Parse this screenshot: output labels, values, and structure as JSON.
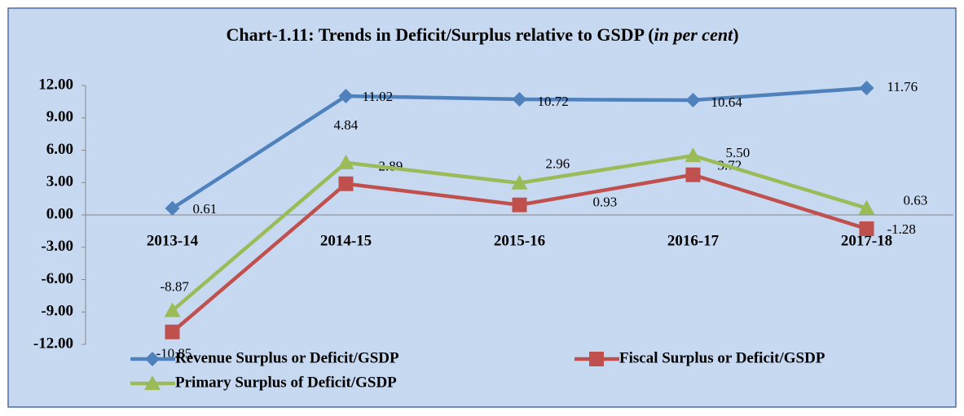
{
  "chart_data": {
    "type": "line",
    "title_parts": [
      "Chart-1.11: Trends in Deficit/Surplus relative to GSDP (",
      "in per cent",
      ")"
    ],
    "categories": [
      "2013-14",
      "2014-15",
      "2015-16",
      "2016-17",
      "2017-18"
    ],
    "series": [
      {
        "name": "Revenue Surplus or Deficit/GSDP",
        "color": "#4f81bd",
        "marker": "diamond",
        "values": [
          0.61,
          11.02,
          10.72,
          10.64,
          11.76
        ],
        "value_labels": [
          "0.61",
          "11.02",
          "10.72",
          "10.64",
          "11.76"
        ]
      },
      {
        "name": "Fiscal Surplus or Deficit/GSDP",
        "color": "#c0504d",
        "marker": "square",
        "values": [
          -10.85,
          2.89,
          0.93,
          3.72,
          -1.28
        ],
        "value_labels": [
          "-10.85",
          "2.89",
          "0.93",
          "3.72",
          "-1.28"
        ]
      },
      {
        "name": "Primary Surplus of Deficit/GSDP",
        "color": "#9bbb59",
        "marker": "triangle",
        "values": [
          -8.87,
          4.84,
          2.96,
          5.5,
          0.63
        ],
        "value_labels": [
          "-8.87",
          "4.84",
          "2.96",
          "5.50",
          "0.63"
        ]
      }
    ],
    "ylim": [
      -12,
      12
    ],
    "yticks": [
      {
        "value": -12,
        "label": "-12.00"
      },
      {
        "value": -9,
        "label": "-9.00"
      },
      {
        "value": -6,
        "label": "-6.00"
      },
      {
        "value": -3,
        "label": "-3.00"
      },
      {
        "value": 0,
        "label": "0.00"
      },
      {
        "value": 3,
        "label": "3.00"
      },
      {
        "value": 6,
        "label": "6.00"
      },
      {
        "value": 9,
        "label": "9.00"
      },
      {
        "value": 12,
        "label": "12.00"
      }
    ],
    "grid": false,
    "legend": "bottom"
  }
}
